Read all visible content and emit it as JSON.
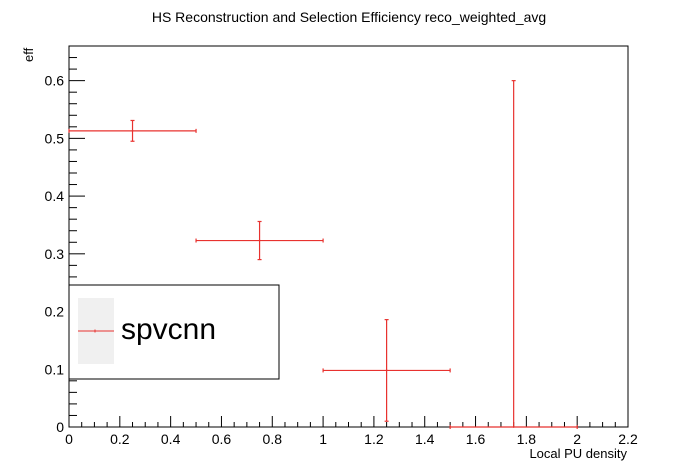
{
  "chart_data": {
    "type": "scatter",
    "title": "HS Reconstruction and Selection Efficiency reco_weighted_avg",
    "xlabel": "Local PU density",
    "ylabel": "eff",
    "xlim": [
      0,
      2.2
    ],
    "ylim": [
      0,
      0.66
    ],
    "x_ticks": [
      "0",
      "0.2",
      "0.4",
      "0.6",
      "0.8",
      "1",
      "1.2",
      "1.4",
      "1.6",
      "1.8",
      "2",
      "2.2"
    ],
    "y_ticks": [
      "0",
      "0.1",
      "0.2",
      "0.3",
      "0.4",
      "0.5",
      "0.6"
    ],
    "grid": false,
    "legend_position": "left",
    "series_color": "#e8322f",
    "series": [
      {
        "name": "spvcnn",
        "points": [
          {
            "x": 0.25,
            "x_err": 0.25,
            "y": 0.513,
            "y_err": 0.018
          },
          {
            "x": 0.75,
            "x_err": 0.25,
            "y": 0.323,
            "y_err": 0.033
          },
          {
            "x": 1.25,
            "x_err": 0.25,
            "y": 0.098,
            "y_err": 0.088
          },
          {
            "x": 1.75,
            "x_err": 0.25,
            "y": 0.0,
            "y_err_low": 0.0,
            "y_err_high": 0.6
          }
        ]
      }
    ]
  }
}
